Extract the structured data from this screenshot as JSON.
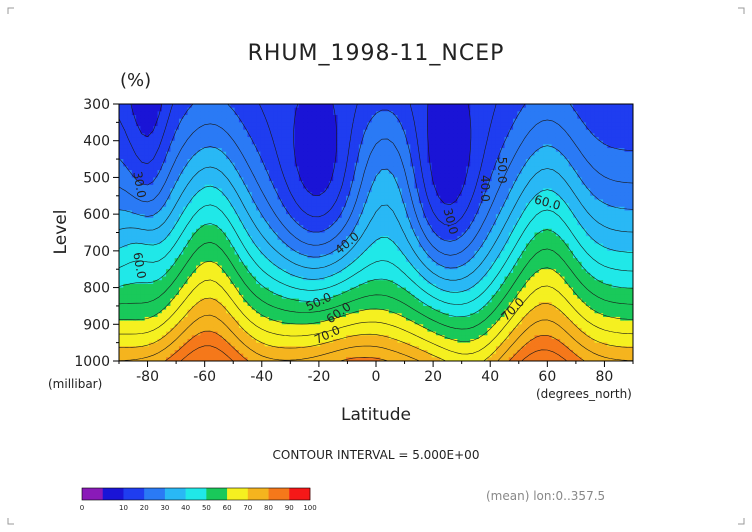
{
  "chart_data": {
    "type": "heatmap",
    "title": "RHUM_1998-11_NCEP",
    "units": "(%)",
    "xlabel": "Latitude",
    "ylabel": "Level",
    "x_units": "(degrees_north)",
    "y_units": "(millibar)",
    "xlim": [
      -90,
      90
    ],
    "ylim": [
      300,
      1000
    ],
    "x_ticks": [
      -80,
      -60,
      -40,
      -20,
      0,
      20,
      40,
      60,
      80
    ],
    "x_tick_labels": [
      "-80",
      "-60",
      "-40",
      "-20",
      "0",
      "20",
      "40",
      "60",
      "80"
    ],
    "y_ticks": [
      300,
      400,
      500,
      600,
      700,
      800,
      900,
      1000
    ],
    "y_tick_labels": [
      "300",
      "400",
      "500",
      "600",
      "700",
      "800",
      "900",
      "1000"
    ],
    "contour_interval_text": "CONTOUR INTERVAL = 5.000E+00",
    "averaging_note": "(mean) lon:0..357.5",
    "colorbar": {
      "levels": [
        0,
        10,
        20,
        30,
        40,
        50,
        60,
        70,
        80,
        90,
        100
      ],
      "level_labels": [
        "0",
        "10",
        "20",
        "30",
        "40",
        "50",
        "60",
        "70",
        "80",
        "90",
        "100"
      ],
      "colors": [
        "#8a1ab8",
        "#1a14d6",
        "#1f3df0",
        "#2a7af5",
        "#29b8f5",
        "#20e8e8",
        "#19c95a",
        "#f5f020",
        "#f5b41e",
        "#f5781a",
        "#f51818"
      ]
    },
    "contour_labels": [
      {
        "text": "30.0",
        "lat": -83,
        "lev": 520,
        "rot": 80
      },
      {
        "text": "60.0",
        "lat": -83,
        "lev": 740,
        "rot": 80
      },
      {
        "text": "40.0",
        "lat": -10,
        "lev": 680,
        "rot": -40
      },
      {
        "text": "50.0",
        "lat": -20,
        "lev": 840,
        "rot": -25
      },
      {
        "text": "60.0",
        "lat": -13,
        "lev": 870,
        "rot": -35
      },
      {
        "text": "70.0",
        "lat": -17,
        "lev": 930,
        "rot": -25
      },
      {
        "text": "30.0",
        "lat": 26,
        "lev": 620,
        "rot": 75
      },
      {
        "text": "40.0",
        "lat": 38,
        "lev": 530,
        "rot": 90
      },
      {
        "text": "50.0",
        "lat": 44,
        "lev": 480,
        "rot": 90
      },
      {
        "text": "60.0",
        "lat": 60,
        "lev": 570,
        "rot": 15
      },
      {
        "text": "70.0",
        "lat": 48,
        "lev": 860,
        "rot": -45
      }
    ]
  }
}
